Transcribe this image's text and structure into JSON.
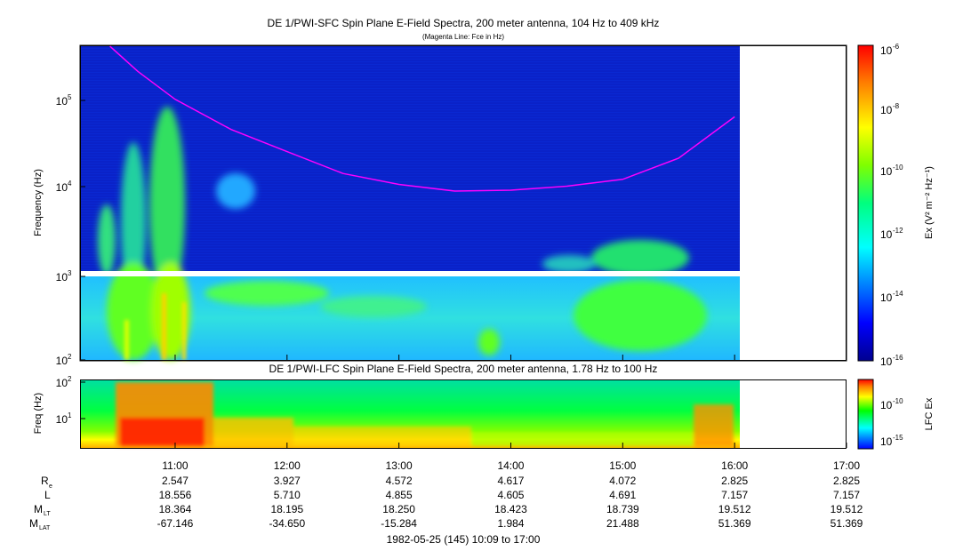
{
  "top_panel": {
    "title": "DE 1/PWI-SFC  Spin Plane E-Field Spectra, 200 meter antenna, 104 Hz to 409 kHz",
    "subtitle": "(Magenta Line: Fce in Hz)",
    "ylabel": "Frequency (Hz)",
    "y_ticks": [
      {
        "base": "10",
        "exp": "2"
      },
      {
        "base": "10",
        "exp": "3"
      },
      {
        "base": "10",
        "exp": "4"
      },
      {
        "base": "10",
        "exp": "5"
      }
    ],
    "colorbar": {
      "label": "Ex (V² m⁻² Hz⁻¹)",
      "ticks": [
        {
          "base": "10",
          "exp": "-6"
        },
        {
          "base": "10",
          "exp": "-8"
        },
        {
          "base": "10",
          "exp": "-10"
        },
        {
          "base": "10",
          "exp": "-12"
        },
        {
          "base": "10",
          "exp": "-14"
        },
        {
          "base": "10",
          "exp": "-16"
        }
      ]
    }
  },
  "bottom_panel": {
    "title": "DE 1/PWI-LFC  Spin Plane E-Field Spectra, 200 meter antenna, 1.78 Hz to 100 Hz",
    "ylabel": "Freq (Hz)",
    "y_ticks": [
      {
        "base": "10",
        "exp": "2"
      },
      {
        "base": "10",
        "exp": "1"
      }
    ],
    "colorbar": {
      "label": "LFC Ex",
      "ticks": [
        {
          "base": "10",
          "exp": "-10"
        },
        {
          "base": "10",
          "exp": "-15"
        }
      ]
    }
  },
  "x_axis": {
    "caption": "1982-05-25 (145) 10:09 to 17:00",
    "times": [
      "11:00",
      "12:00",
      "13:00",
      "14:00",
      "15:00",
      "16:00",
      "17:00"
    ]
  },
  "ephemeris": {
    "rows": [
      {
        "name": "R",
        "sub": "e",
        "values": [
          "2.547",
          "3.927",
          "4.572",
          "4.617",
          "4.072",
          "2.825",
          "2.825"
        ]
      },
      {
        "name": "L",
        "sub": "",
        "values": [
          "18.556",
          "5.710",
          "4.855",
          "4.605",
          "4.691",
          "7.157",
          "7.157"
        ]
      },
      {
        "name": "M",
        "sub": "LT",
        "values": [
          "18.364",
          "18.195",
          "18.250",
          "18.423",
          "18.739",
          "19.512",
          "19.512"
        ]
      },
      {
        "name": "M",
        "sub": "LAT",
        "values": [
          "-67.146",
          "-34.650",
          "-15.284",
          "1.984",
          "21.488",
          "51.369",
          "51.369"
        ]
      }
    ]
  },
  "chart_data": {
    "type": "heatmap",
    "title": "DE 1/PWI-SFC  Spin Plane E-Field Spectra, 200 meter antenna, 104 Hz to 409 kHz",
    "subtitle": "(Magenta Line: Fce in Hz)",
    "x_range": [
      "10:09",
      "17:00"
    ],
    "x_ticks": [
      "11:00",
      "12:00",
      "13:00",
      "14:00",
      "15:00",
      "16:00",
      "17:00"
    ],
    "data_end_time": "16:02",
    "y_scale": "log",
    "ylim": [
      100,
      409000
    ],
    "ylabel": "Frequency (Hz)",
    "colorbar_range": [
      1e-16,
      1e-06
    ],
    "colorbar_scale": "log",
    "fce_series": {
      "name": "Fce",
      "color": "#ff00ff",
      "points": [
        {
          "t": "10:25",
          "f": 409000
        },
        {
          "t": "10:40",
          "f": 210000
        },
        {
          "t": "11:00",
          "f": 100000
        },
        {
          "t": "11:30",
          "f": 45000
        },
        {
          "t": "12:00",
          "f": 25000
        },
        {
          "t": "12:30",
          "f": 14000
        },
        {
          "t": "13:00",
          "f": 10500
        },
        {
          "t": "13:30",
          "f": 8800
        },
        {
          "t": "14:00",
          "f": 9000
        },
        {
          "t": "14:30",
          "f": 10000
        },
        {
          "t": "15:00",
          "f": 12000
        },
        {
          "t": "15:30",
          "f": 21000
        },
        {
          "t": "16:00",
          "f": 63000
        }
      ]
    },
    "lfc_panel": {
      "title": "DE 1/PWI-LFC  Spin Plane E-Field Spectra, 200 meter antenna, 1.78 Hz to 100 Hz",
      "ylim": [
        1.78,
        100
      ],
      "y_scale": "log",
      "colorbar_label": "LFC Ex"
    }
  }
}
